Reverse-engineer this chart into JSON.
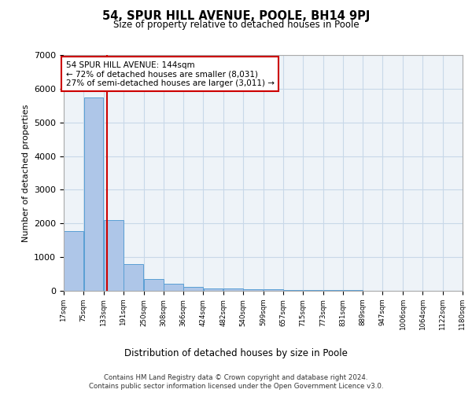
{
  "title": "54, SPUR HILL AVENUE, POOLE, BH14 9PJ",
  "subtitle": "Size of property relative to detached houses in Poole",
  "xlabel": "Distribution of detached houses by size in Poole",
  "ylabel": "Number of detached properties",
  "footer_line1": "Contains HM Land Registry data © Crown copyright and database right 2024.",
  "footer_line2": "Contains public sector information licensed under the Open Government Licence v3.0.",
  "annotation_line1": "54 SPUR HILL AVENUE: 144sqm",
  "annotation_line2": "← 72% of detached houses are smaller (8,031)",
  "annotation_line3": "27% of semi-detached houses are larger (3,011) →",
  "property_size": 144,
  "bar_color": "#aec6e8",
  "bar_edge_color": "#5a9fd4",
  "vline_color": "#cc0000",
  "annotation_box_color": "#cc0000",
  "grid_color": "#c8d8e8",
  "background_color": "#eef3f8",
  "bin_edges": [
    17,
    75,
    133,
    191,
    250,
    308,
    366,
    424,
    482,
    540,
    599,
    657,
    715,
    773,
    831,
    889,
    947,
    1006,
    1064,
    1122,
    1180
  ],
  "bar_heights": [
    1780,
    5750,
    2090,
    800,
    340,
    200,
    110,
    80,
    70,
    50,
    40,
    35,
    25,
    20,
    15,
    10,
    8,
    6,
    5,
    4
  ],
  "ylim": [
    0,
    7000
  ],
  "yticks": [
    0,
    1000,
    2000,
    3000,
    4000,
    5000,
    6000,
    7000
  ]
}
